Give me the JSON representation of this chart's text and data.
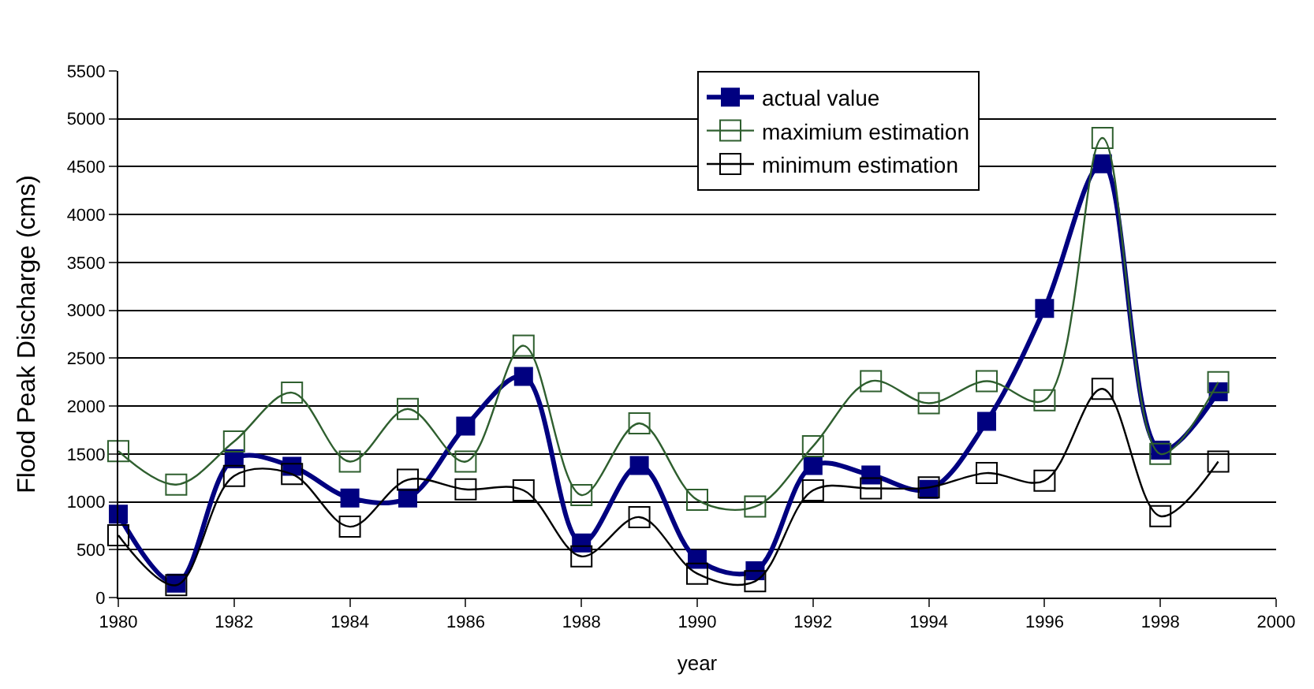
{
  "chart_data": {
    "type": "line",
    "xlabel": "year",
    "ylabel": "Flood Peak Discharge (cms)",
    "x": [
      1980,
      1981,
      1982,
      1983,
      1984,
      1985,
      1986,
      1987,
      1988,
      1989,
      1990,
      1991,
      1992,
      1993,
      1994,
      1995,
      1996,
      1997,
      1998,
      1999
    ],
    "series": [
      {
        "name": "actual value",
        "color": "#000080",
        "marker": "square",
        "values": [
          870,
          150,
          1450,
          1370,
          1040,
          1040,
          1790,
          2310,
          570,
          1380,
          400,
          280,
          1380,
          1280,
          1130,
          1840,
          3020,
          4530,
          1540,
          2150
        ]
      },
      {
        "name": "maximium estimation",
        "color": "#2f5f2f",
        "marker": "square-open",
        "values": [
          1530,
          1180,
          1630,
          2140,
          1420,
          1970,
          1420,
          2630,
          1070,
          1820,
          1020,
          950,
          1580,
          2260,
          2030,
          2260,
          2060,
          4800,
          1500,
          2250
        ]
      },
      {
        "name": "minimum estimation",
        "color": "#000000",
        "marker": "square-open",
        "values": [
          650,
          130,
          1270,
          1290,
          740,
          1230,
          1130,
          1120,
          430,
          840,
          250,
          170,
          1120,
          1140,
          1150,
          1300,
          1220,
          2180,
          850,
          1420
        ]
      }
    ],
    "xlim": [
      1980,
      2000
    ],
    "xticks": [
      1980,
      1982,
      1984,
      1986,
      1988,
      1990,
      1992,
      1994,
      1996,
      1998,
      2000
    ],
    "ylim": [
      0,
      5500
    ],
    "yticks": [
      0,
      500,
      1000,
      1500,
      2000,
      2500,
      3000,
      3500,
      4000,
      4500,
      5000,
      5500
    ],
    "grid": "y",
    "legend": "top"
  }
}
